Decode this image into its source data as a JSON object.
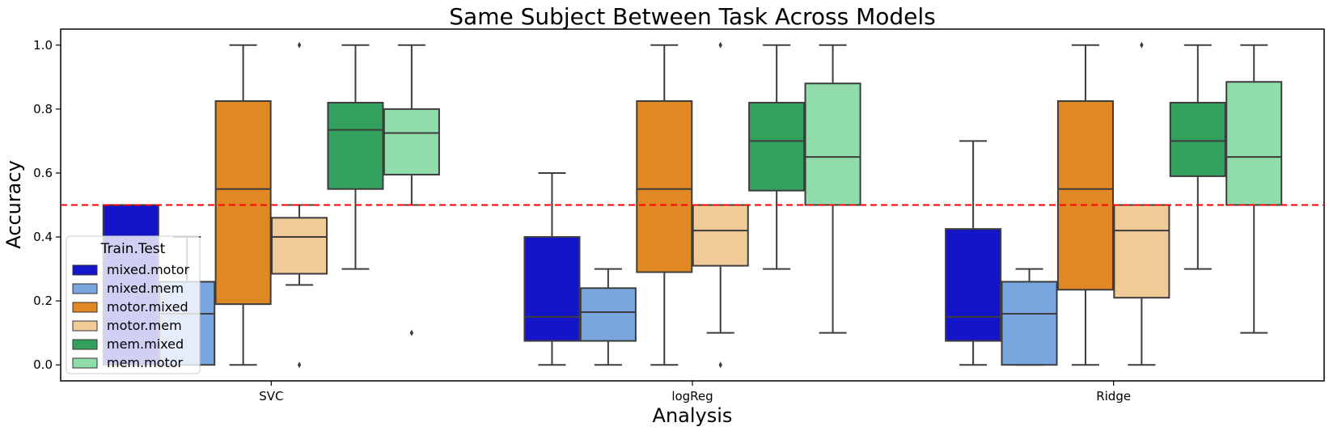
{
  "chart_data": {
    "type": "box",
    "title": "Same Subject Between Task Across Models",
    "xlabel": "Analysis",
    "ylabel": "Accuracy",
    "ylim": [
      -0.05,
      1.05
    ],
    "yticks": [
      "0.0",
      "0.2",
      "0.4",
      "0.6",
      "0.8",
      "1.0"
    ],
    "grid": false,
    "reference_line": {
      "y": 0.5,
      "color": "#ff0000",
      "style": "dashed"
    },
    "legend": {
      "title": "Train.Test",
      "position": "lower-left"
    },
    "categories": [
      "SVC",
      "logReg",
      "Ridge"
    ],
    "series": [
      {
        "name": "mixed.motor",
        "color": "#1414c8",
        "boxes": [
          {
            "whislo": 0.0,
            "q1": 0.0,
            "med": 0.5,
            "q3": 0.5,
            "whishi": 0.5,
            "fliers": []
          },
          {
            "whislo": 0.0,
            "q1": 0.075,
            "med": 0.15,
            "q3": 0.4,
            "whishi": 0.6,
            "fliers": []
          },
          {
            "whislo": 0.0,
            "q1": 0.075,
            "med": 0.15,
            "q3": 0.425,
            "whishi": 0.7,
            "fliers": []
          }
        ]
      },
      {
        "name": "mixed.mem",
        "color": "#7aa6e0",
        "boxes": [
          {
            "whislo": 0.0,
            "q1": 0.0,
            "med": 0.16,
            "q3": 0.26,
            "whishi": 0.4,
            "fliers": []
          },
          {
            "whislo": 0.0,
            "q1": 0.075,
            "med": 0.165,
            "q3": 0.24,
            "whishi": 0.3,
            "fliers": []
          },
          {
            "whislo": 0.0,
            "q1": 0.0,
            "med": 0.16,
            "q3": 0.26,
            "whishi": 0.3,
            "fliers": []
          }
        ]
      },
      {
        "name": "motor.mixed",
        "color": "#e08924",
        "boxes": [
          {
            "whislo": 0.0,
            "q1": 0.19,
            "med": 0.55,
            "q3": 0.825,
            "whishi": 1.0,
            "fliers": []
          },
          {
            "whislo": 0.0,
            "q1": 0.29,
            "med": 0.55,
            "q3": 0.825,
            "whishi": 1.0,
            "fliers": []
          },
          {
            "whislo": 0.0,
            "q1": 0.235,
            "med": 0.55,
            "q3": 0.825,
            "whishi": 1.0,
            "fliers": []
          }
        ]
      },
      {
        "name": "motor.mem",
        "color": "#f0cb98",
        "boxes": [
          {
            "whislo": 0.25,
            "q1": 0.285,
            "med": 0.4,
            "q3": 0.46,
            "whishi": 0.5,
            "fliers": [
              0.0,
              1.0
            ]
          },
          {
            "whislo": 0.1,
            "q1": 0.31,
            "med": 0.42,
            "q3": 0.5,
            "whishi": 0.5,
            "fliers": [
              0.0,
              1.0
            ]
          },
          {
            "whislo": 0.0,
            "q1": 0.21,
            "med": 0.42,
            "q3": 0.5,
            "whishi": 0.5,
            "fliers": [
              1.0
            ]
          }
        ]
      },
      {
        "name": "mem.mixed",
        "color": "#34a05e",
        "boxes": [
          {
            "whislo": 0.3,
            "q1": 0.55,
            "med": 0.735,
            "q3": 0.82,
            "whishi": 1.0,
            "fliers": []
          },
          {
            "whislo": 0.3,
            "q1": 0.545,
            "med": 0.7,
            "q3": 0.82,
            "whishi": 1.0,
            "fliers": []
          },
          {
            "whislo": 0.3,
            "q1": 0.59,
            "med": 0.7,
            "q3": 0.82,
            "whishi": 1.0,
            "fliers": []
          }
        ]
      },
      {
        "name": "mem.motor",
        "color": "#90dcab",
        "boxes": [
          {
            "whislo": 0.5,
            "q1": 0.595,
            "med": 0.725,
            "q3": 0.8,
            "whishi": 1.0,
            "fliers": [
              0.1
            ]
          },
          {
            "whislo": 0.1,
            "q1": 0.5,
            "med": 0.65,
            "q3": 0.88,
            "whishi": 1.0,
            "fliers": []
          },
          {
            "whislo": 0.1,
            "q1": 0.5,
            "med": 0.65,
            "q3": 0.885,
            "whishi": 1.0,
            "fliers": []
          }
        ]
      }
    ]
  }
}
